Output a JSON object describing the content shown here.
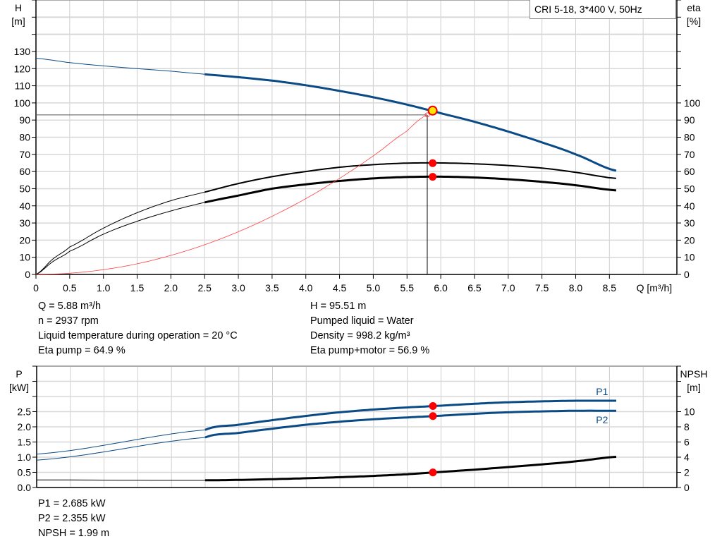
{
  "chart_data": [
    {
      "type": "line",
      "title": "",
      "pump_label": "CRI 5-18, 3*400 V, 50Hz",
      "xlabel": "Q [m³/h]",
      "ylabel_left": [
        "H",
        "[m]"
      ],
      "ylabel_right": [
        "eta",
        "[%]"
      ],
      "xlim": [
        0,
        9.5
      ],
      "ylim": [
        0,
        160
      ],
      "y2lim": [
        0,
        160
      ],
      "grid": true,
      "xticks": [
        "0",
        "0.5",
        "1.0",
        "1.5",
        "2.0",
        "2.5",
        "3.0",
        "3.5",
        "4.0",
        "4.5",
        "5.0",
        "5.5",
        "6.0",
        "6.5",
        "7.0",
        "7.5",
        "8.0",
        "8.5"
      ],
      "yticks": [
        0,
        10,
        20,
        30,
        40,
        50,
        60,
        70,
        80,
        90,
        100,
        110,
        120,
        130
      ],
      "y2ticks": [
        0,
        10,
        20,
        30,
        40,
        50,
        60,
        70,
        80,
        90,
        100
      ],
      "series": [
        {
          "name": "H",
          "axis": "left",
          "color": "#0a4a85",
          "thin_until": 2.5,
          "x": [
            0,
            0.5,
            1,
            1.5,
            2,
            2.5,
            3,
            3.5,
            4,
            4.5,
            5,
            5.5,
            6,
            6.5,
            7,
            7.5,
            8,
            8.6
          ],
          "y": [
            126,
            123.5,
            121.6,
            120,
            118.5,
            116.7,
            115,
            113,
            110.3,
            107,
            103.3,
            99,
            94,
            89,
            83.3,
            77,
            70,
            60.5
          ]
        },
        {
          "name": "Eta pump",
          "axis": "right",
          "color": "#000000",
          "thin_until": 2.5,
          "x": [
            0,
            0.25,
            0.5,
            1,
            1.5,
            2,
            2.5,
            3,
            3.5,
            4,
            4.5,
            5,
            5.5,
            6,
            6.5,
            7,
            7.5,
            8,
            8.6
          ],
          "y": [
            0,
            9,
            16,
            27,
            36,
            43,
            48,
            53,
            57,
            60,
            62.5,
            64,
            64.9,
            65,
            64.5,
            63.5,
            62,
            59.5,
            56
          ]
        },
        {
          "name": "Eta pump+motor",
          "axis": "right",
          "color": "#000000",
          "thin_until": 2.5,
          "x": [
            0,
            0.25,
            0.5,
            1,
            1.5,
            2,
            2.5,
            3,
            3.5,
            4,
            4.5,
            5,
            5.5,
            6,
            6.5,
            7,
            7.5,
            8,
            8.6
          ],
          "y": [
            0,
            7.5,
            13.5,
            23.5,
            31,
            37,
            42,
            46,
            50,
            52.5,
            54.5,
            56,
            56.8,
            57,
            56.5,
            55.5,
            54,
            52,
            49
          ]
        },
        {
          "name": "System curve",
          "axis": "left",
          "color": "#ff4040",
          "x": [
            0,
            0.5,
            1,
            1.5,
            2,
            2.5,
            3,
            3.5,
            4,
            4.5,
            5,
            5.5,
            5.8
          ],
          "y": [
            0,
            0.7,
            2.8,
            6.2,
            11.1,
            17.3,
            24.9,
            33.9,
            44.2,
            56,
            69.1,
            83.6,
            93
          ]
        }
      ],
      "crosshair": {
        "q": 5.8,
        "h": 93
      },
      "operating_point": {
        "q": 5.88,
        "h": 95.51
      },
      "eta_points": [
        {
          "q": 5.88,
          "eta": 64.9
        },
        {
          "q": 5.88,
          "eta": 56.9
        }
      ],
      "info_left": [
        "Q = 5.88 m³/h",
        "n = 2937 rpm",
        "Liquid temperature during operation = 20 °C",
        "Eta pump = 64.9 %"
      ],
      "info_right": [
        "H = 95.51 m",
        "Pumped liquid = Water",
        "Density = 998.2 kg/m³",
        "Eta pump+motor = 56.9 %"
      ]
    },
    {
      "type": "line",
      "title": "",
      "ylabel_left": [
        "P",
        "[kW]"
      ],
      "ylabel_right": [
        "NPSH",
        "[m]"
      ],
      "xlim": [
        0,
        9.5
      ],
      "ylim": [
        0,
        4
      ],
      "y2lim": [
        0,
        16
      ],
      "grid": true,
      "yticks": [
        "0.0",
        "0.5",
        "1.0",
        "1.5",
        "2.0",
        "2.5"
      ],
      "y2ticks": [
        "0",
        "2",
        "4",
        "6",
        "8",
        "10"
      ],
      "series": [
        {
          "name": "P1",
          "axis": "left",
          "color": "#0a4a85",
          "thin_until": 2.5,
          "x": [
            0,
            2.5,
            3,
            3.5,
            4,
            4.5,
            5,
            5.5,
            5.88,
            6.5,
            7,
            7.5,
            8,
            8.6
          ],
          "y": [
            1.1,
            1.9,
            2.07,
            2.22,
            2.36,
            2.48,
            2.57,
            2.64,
            2.685,
            2.76,
            2.81,
            2.84,
            2.86,
            2.86
          ]
        },
        {
          "name": "P2",
          "axis": "left",
          "color": "#0a4a85",
          "thin_until": 2.5,
          "x": [
            0,
            2.5,
            3,
            3.5,
            4,
            4.5,
            5,
            5.5,
            5.88,
            6.5,
            7,
            7.5,
            8,
            8.6
          ],
          "y": [
            0.9,
            1.65,
            1.8,
            1.94,
            2.07,
            2.17,
            2.25,
            2.31,
            2.355,
            2.43,
            2.48,
            2.51,
            2.53,
            2.53
          ]
        },
        {
          "name": "NPSH",
          "axis": "right",
          "color": "#000000",
          "thin_until": 2.5,
          "x": [
            0,
            2.5,
            3,
            3.5,
            4,
            4.5,
            5,
            5.5,
            5.88,
            6.5,
            7,
            7.5,
            8,
            8.6
          ],
          "y": [
            1.0,
            0.95,
            1.0,
            1.1,
            1.22,
            1.36,
            1.53,
            1.75,
            1.99,
            2.35,
            2.7,
            3.05,
            3.45,
            4.05
          ]
        }
      ],
      "points": [
        {
          "q": 5.88,
          "axis": "left",
          "v": 2.685
        },
        {
          "q": 5.88,
          "axis": "left",
          "v": 2.355
        },
        {
          "q": 5.88,
          "axis": "right",
          "v": 1.99
        }
      ],
      "info": [
        "P1 = 2.685 kW",
        "P2 = 2.355 kW",
        "NPSH = 1.99 m"
      ]
    }
  ]
}
